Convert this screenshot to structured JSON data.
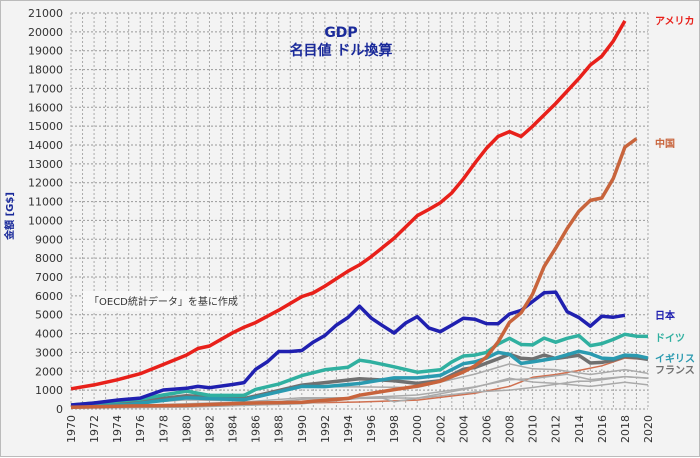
{
  "chart_data": {
    "type": "line",
    "title": "GDP",
    "subtitle": "名目値 ドル換算",
    "ylabel": "金額 [G$]",
    "xlabel": "",
    "annotation": "「OECD統計データ」を基に作成",
    "xlim": [
      1970,
      2020
    ],
    "ylim": [
      0,
      21000
    ],
    "ytick_step": 1000,
    "xtick_step": 2,
    "grid": true,
    "series": [
      {
        "name": "アメリカ",
        "color": "#e8201a",
        "points": [
          [
            1970,
            1070
          ],
          [
            1972,
            1280
          ],
          [
            1974,
            1550
          ],
          [
            1976,
            1870
          ],
          [
            1978,
            2360
          ],
          [
            1980,
            2860
          ],
          [
            1981,
            3210
          ],
          [
            1982,
            3340
          ],
          [
            1984,
            4040
          ],
          [
            1985,
            4340
          ],
          [
            1986,
            4580
          ],
          [
            1988,
            5240
          ],
          [
            1990,
            5960
          ],
          [
            1991,
            6160
          ],
          [
            1992,
            6520
          ],
          [
            1994,
            7310
          ],
          [
            1995,
            7640
          ],
          [
            1996,
            8070
          ],
          [
            1998,
            9060
          ],
          [
            2000,
            10250
          ],
          [
            2001,
            10580
          ],
          [
            2002,
            10940
          ],
          [
            2003,
            11460
          ],
          [
            2004,
            12210
          ],
          [
            2005,
            13040
          ],
          [
            2006,
            13820
          ],
          [
            2007,
            14450
          ],
          [
            2008,
            14710
          ],
          [
            2009,
            14450
          ],
          [
            2010,
            14990
          ],
          [
            2012,
            16200
          ],
          [
            2014,
            17520
          ],
          [
            2015,
            18240
          ],
          [
            2016,
            18710
          ],
          [
            2017,
            19520
          ],
          [
            2018,
            20580
          ]
        ]
      },
      {
        "name": "中国",
        "color": "#c8643c",
        "points": [
          [
            1970,
            90
          ],
          [
            1975,
            160
          ],
          [
            1980,
            190
          ],
          [
            1985,
            310
          ],
          [
            1990,
            360
          ],
          [
            1994,
            560
          ],
          [
            1995,
            730
          ],
          [
            1998,
            1030
          ],
          [
            2000,
            1210
          ],
          [
            2002,
            1470
          ],
          [
            2004,
            1960
          ],
          [
            2005,
            2290
          ],
          [
            2006,
            2750
          ],
          [
            2007,
            3550
          ],
          [
            2008,
            4600
          ],
          [
            2009,
            5100
          ],
          [
            2010,
            6090
          ],
          [
            2011,
            7550
          ],
          [
            2012,
            8530
          ],
          [
            2013,
            9570
          ],
          [
            2014,
            10480
          ],
          [
            2015,
            11060
          ],
          [
            2016,
            11190
          ],
          [
            2017,
            12240
          ],
          [
            2018,
            13890
          ],
          [
            2019,
            14340
          ]
        ]
      },
      {
        "name": "日本",
        "color": "#2020b0",
        "points": [
          [
            1970,
            210
          ],
          [
            1972,
            320
          ],
          [
            1974,
            470
          ],
          [
            1976,
            580
          ],
          [
            1978,
            1010
          ],
          [
            1980,
            1100
          ],
          [
            1981,
            1200
          ],
          [
            1982,
            1130
          ],
          [
            1984,
            1300
          ],
          [
            1985,
            1400
          ],
          [
            1986,
            2100
          ],
          [
            1987,
            2500
          ],
          [
            1988,
            3050
          ],
          [
            1989,
            3050
          ],
          [
            1990,
            3100
          ],
          [
            1991,
            3550
          ],
          [
            1992,
            3900
          ],
          [
            1993,
            4450
          ],
          [
            1994,
            4850
          ],
          [
            1995,
            5450
          ],
          [
            1996,
            4830
          ],
          [
            1997,
            4420
          ],
          [
            1998,
            4030
          ],
          [
            1999,
            4560
          ],
          [
            2000,
            4900
          ],
          [
            2001,
            4300
          ],
          [
            2002,
            4100
          ],
          [
            2003,
            4450
          ],
          [
            2004,
            4810
          ],
          [
            2005,
            4760
          ],
          [
            2006,
            4530
          ],
          [
            2007,
            4520
          ],
          [
            2008,
            5040
          ],
          [
            2009,
            5230
          ],
          [
            2010,
            5700
          ],
          [
            2011,
            6160
          ],
          [
            2012,
            6200
          ],
          [
            2013,
            5160
          ],
          [
            2014,
            4850
          ],
          [
            2015,
            4390
          ],
          [
            2016,
            4920
          ],
          [
            2017,
            4870
          ],
          [
            2018,
            4970
          ]
        ]
      },
      {
        "name": "ドイツ",
        "color": "#30b0a0",
        "points": [
          [
            1970,
            210
          ],
          [
            1974,
            420
          ],
          [
            1976,
            520
          ],
          [
            1978,
            740
          ],
          [
            1980,
            950
          ],
          [
            1982,
            720
          ],
          [
            1985,
            720
          ],
          [
            1986,
            1040
          ],
          [
            1988,
            1320
          ],
          [
            1990,
            1770
          ],
          [
            1992,
            2080
          ],
          [
            1994,
            2210
          ],
          [
            1995,
            2590
          ],
          [
            1996,
            2500
          ],
          [
            1998,
            2240
          ],
          [
            2000,
            1950
          ],
          [
            2002,
            2080
          ],
          [
            2003,
            2500
          ],
          [
            2004,
            2810
          ],
          [
            2005,
            2860
          ],
          [
            2006,
            3000
          ],
          [
            2007,
            3440
          ],
          [
            2008,
            3750
          ],
          [
            2009,
            3420
          ],
          [
            2010,
            3400
          ],
          [
            2011,
            3760
          ],
          [
            2012,
            3540
          ],
          [
            2013,
            3750
          ],
          [
            2014,
            3890
          ],
          [
            2015,
            3360
          ],
          [
            2016,
            3470
          ],
          [
            2017,
            3690
          ],
          [
            2018,
            3960
          ],
          [
            2019,
            3860
          ],
          [
            2020,
            3850
          ]
        ]
      },
      {
        "name": "イギリス",
        "color": "#2a9ab0",
        "points": [
          [
            1970,
            130
          ],
          [
            1975,
            240
          ],
          [
            1980,
            600
          ],
          [
            1985,
            490
          ],
          [
            1990,
            1200
          ],
          [
            1992,
            1190
          ],
          [
            1995,
            1350
          ],
          [
            1998,
            1650
          ],
          [
            2000,
            1650
          ],
          [
            2002,
            1780
          ],
          [
            2004,
            2400
          ],
          [
            2005,
            2500
          ],
          [
            2006,
            2700
          ],
          [
            2007,
            3000
          ],
          [
            2008,
            2900
          ],
          [
            2009,
            2420
          ],
          [
            2010,
            2500
          ],
          [
            2012,
            2700
          ],
          [
            2014,
            3060
          ],
          [
            2015,
            2930
          ],
          [
            2016,
            2700
          ],
          [
            2017,
            2660
          ],
          [
            2018,
            2860
          ],
          [
            2019,
            2830
          ],
          [
            2020,
            2700
          ]
        ]
      },
      {
        "name": "フランス",
        "color": "#707070",
        "points": [
          [
            1970,
            150
          ],
          [
            1975,
            360
          ],
          [
            1980,
            700
          ],
          [
            1985,
            550
          ],
          [
            1990,
            1270
          ],
          [
            1992,
            1400
          ],
          [
            1995,
            1600
          ],
          [
            1998,
            1500
          ],
          [
            2000,
            1360
          ],
          [
            2002,
            1500
          ],
          [
            2004,
            2110
          ],
          [
            2005,
            2200
          ],
          [
            2007,
            2660
          ],
          [
            2008,
            2900
          ],
          [
            2009,
            2690
          ],
          [
            2010,
            2650
          ],
          [
            2011,
            2860
          ],
          [
            2012,
            2680
          ],
          [
            2014,
            2850
          ],
          [
            2015,
            2440
          ],
          [
            2016,
            2470
          ],
          [
            2017,
            2590
          ],
          [
            2018,
            2790
          ],
          [
            2019,
            2720
          ],
          [
            2020,
            2630
          ]
        ]
      },
      {
        "color": "#aaaaaa",
        "points": [
          [
            1970,
            110
          ],
          [
            1980,
            480
          ],
          [
            1985,
            440
          ],
          [
            1990,
            1180
          ],
          [
            1995,
            1170
          ],
          [
            2000,
            1140
          ],
          [
            2005,
            1850
          ],
          [
            2008,
            2390
          ],
          [
            2010,
            2130
          ],
          [
            2012,
            2090
          ],
          [
            2015,
            1830
          ],
          [
            2018,
            2090
          ],
          [
            2020,
            1890
          ]
        ]
      },
      {
        "color": "#aaaaaa",
        "points": [
          [
            1970,
            90
          ],
          [
            1980,
            280
          ],
          [
            1985,
            370
          ],
          [
            1990,
            600
          ],
          [
            1995,
            600
          ],
          [
            2000,
            740
          ],
          [
            2005,
            1170
          ],
          [
            2008,
            1550
          ],
          [
            2010,
            1610
          ],
          [
            2013,
            1840
          ],
          [
            2015,
            1560
          ],
          [
            2018,
            1720
          ],
          [
            2020,
            1640
          ]
        ]
      },
      {
        "color": "#aaaaaa",
        "points": [
          [
            1970,
            60
          ],
          [
            1980,
            230
          ],
          [
            1985,
            200
          ],
          [
            1990,
            520
          ],
          [
            1995,
            600
          ],
          [
            2000,
            580
          ],
          [
            2005,
            1150
          ],
          [
            2008,
            1630
          ],
          [
            2010,
            1430
          ],
          [
            2012,
            1360
          ],
          [
            2015,
            1200
          ],
          [
            2018,
            1420
          ],
          [
            2020,
            1280
          ]
        ]
      },
      {
        "color": "#aaaaaa",
        "points": [
          [
            1970,
            40
          ],
          [
            1980,
            100
          ],
          [
            1990,
            280
          ],
          [
            1995,
            560
          ],
          [
            1997,
            580
          ],
          [
            1998,
            380
          ],
          [
            2000,
            560
          ],
          [
            2005,
            900
          ],
          [
            2008,
            1000
          ],
          [
            2010,
            1140
          ],
          [
            2014,
            1480
          ],
          [
            2015,
            1470
          ],
          [
            2018,
            1720
          ],
          [
            2020,
            1630
          ]
        ]
      },
      {
        "color": "#d07050",
        "points": [
          [
            1970,
            60
          ],
          [
            1980,
            190
          ],
          [
            1990,
            320
          ],
          [
            1995,
            370
          ],
          [
            2000,
            470
          ],
          [
            2005,
            830
          ],
          [
            2008,
            1200
          ],
          [
            2010,
            1680
          ],
          [
            2012,
            1830
          ],
          [
            2014,
            2040
          ],
          [
            2016,
            2290
          ],
          [
            2018,
            2700
          ],
          [
            2020,
            2620
          ]
        ]
      }
    ]
  }
}
